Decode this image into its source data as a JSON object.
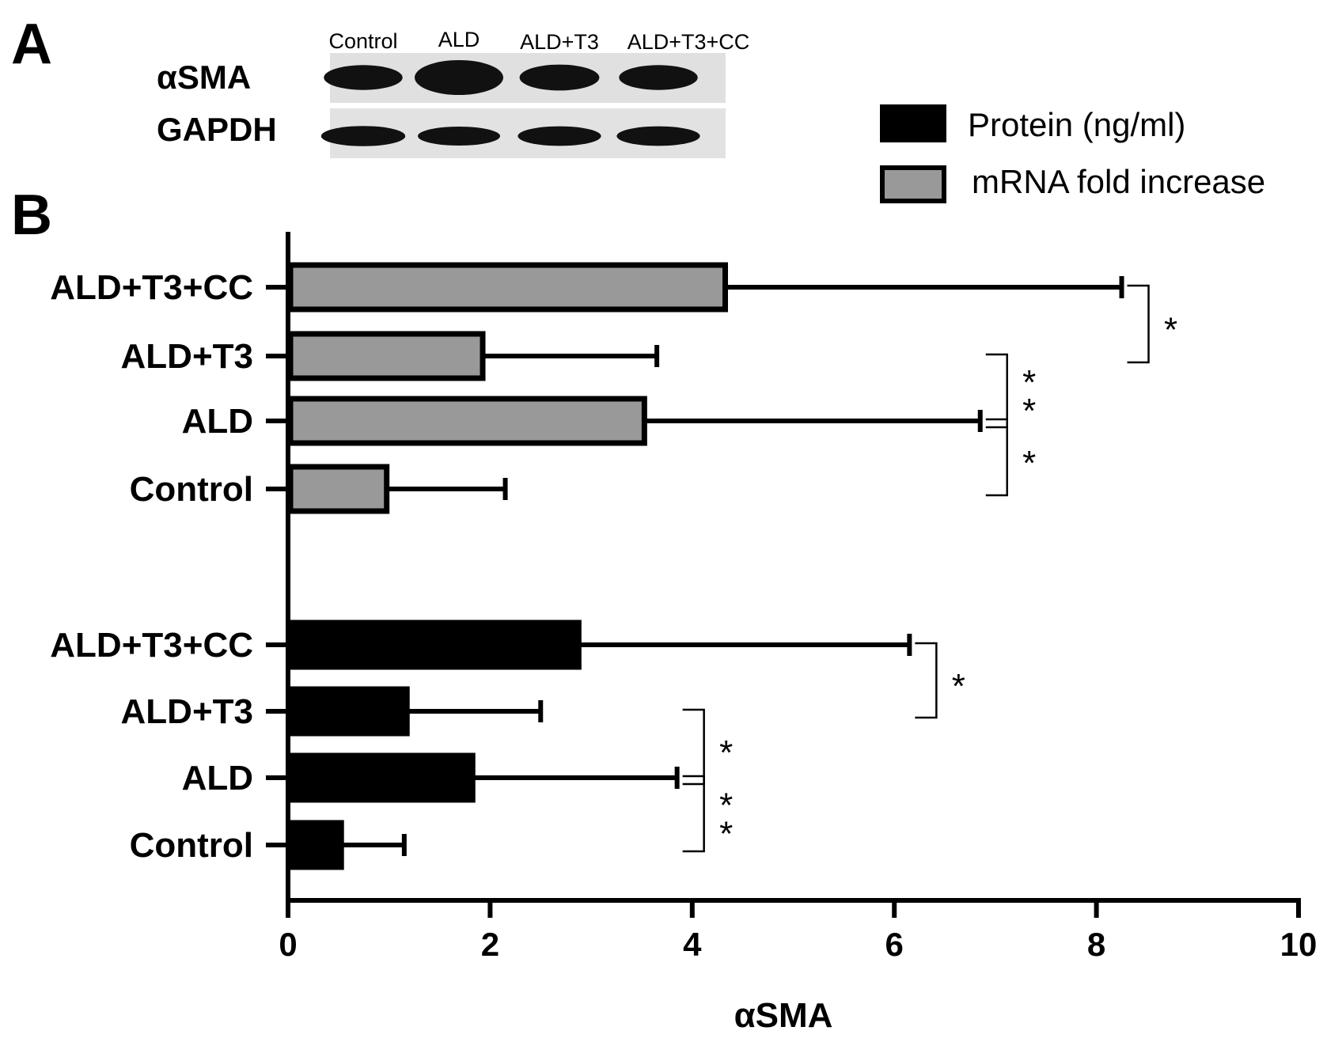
{
  "panels": {
    "a_letter": "A",
    "b_letter": "B"
  },
  "blot": {
    "lane_labels": [
      "Control",
      "ALD",
      "ALD+T3",
      "ALD+T3+CC"
    ],
    "row_labels": [
      "αSMA",
      "GAPDH"
    ],
    "band_intensity": {
      "alpha_sma": [
        0.55,
        1.0,
        0.6,
        0.55
      ],
      "gapdh": [
        0.6,
        0.5,
        0.55,
        0.55
      ]
    }
  },
  "chart_data": {
    "type": "bar",
    "orientation": "horizontal",
    "xlabel": "αSMA",
    "ylabel": "",
    "xlim": [
      0,
      10
    ],
    "xticks": [
      0,
      2,
      4,
      6,
      8,
      10
    ],
    "legend": {
      "placement": "top-right",
      "entries": [
        {
          "label": "Protein (ng/ml)",
          "color": "#000000"
        },
        {
          "label": "mRNA fold increase",
          "color": "#999999"
        }
      ]
    },
    "groups": [
      {
        "series": "mRNA fold increase",
        "categories": [
          "ALD+T3+CC",
          "ALD+T3",
          "ALD",
          "Control"
        ],
        "values": [
          4.35,
          1.95,
          3.55,
          1.0
        ],
        "errors": [
          3.9,
          1.7,
          3.3,
          1.15
        ],
        "significance": [
          {
            "between": [
              "ALD+T3+CC",
              "ALD+T3"
            ],
            "label": "*"
          },
          {
            "between": [
              "ALD+T3",
              "ALD"
            ],
            "label": "**"
          },
          {
            "between": [
              "ALD",
              "Control"
            ],
            "label": "*"
          }
        ]
      },
      {
        "series": "Protein (ng/ml)",
        "categories": [
          "ALD+T3+CC",
          "ALD+T3",
          "ALD",
          "Control"
        ],
        "values": [
          2.9,
          1.2,
          1.85,
          0.55
        ],
        "errors": [
          3.25,
          1.3,
          2.0,
          0.6
        ],
        "significance": [
          {
            "between": [
              "ALD+T3+CC",
              "ALD+T3"
            ],
            "label": "*"
          },
          {
            "between": [
              "ALD+T3",
              "ALD"
            ],
            "label": "*"
          },
          {
            "between": [
              "ALD",
              "Control"
            ],
            "label": "**"
          }
        ]
      }
    ],
    "colors": {
      "mrna_fill": "#999999",
      "protein_fill": "#000000",
      "axis": "#000000"
    }
  }
}
